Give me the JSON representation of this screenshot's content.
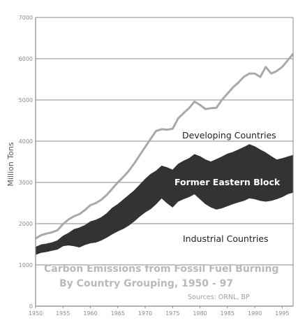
{
  "chart_data": {
    "type": "area",
    "title": "Carbon Emissions from Fossil Fuel Burning",
    "subtitle": "By Country Grouping, 1950 - 97",
    "source": "Sources: ORNL, BP",
    "ylabel": "Million Tons",
    "xlabel": "",
    "xlim": [
      1950,
      1997
    ],
    "ylim": [
      0,
      7000
    ],
    "x_ticks": [
      "1950",
      "1955",
      "1960",
      "1965",
      "1970",
      "1975",
      "1980",
      "1985",
      "1990",
      "1995"
    ],
    "y_ticks": [
      "0",
      "1000",
      "2000",
      "3000",
      "4000",
      "5000",
      "6000",
      "7000"
    ],
    "grid": "horizontal",
    "colors": {
      "frame": "#888888",
      "total_line": "#a9a9a9",
      "eastern_block": "#333333"
    },
    "x": [
      1950,
      1951,
      1952,
      1953,
      1954,
      1955,
      1956,
      1957,
      1958,
      1959,
      1960,
      1961,
      1962,
      1963,
      1964,
      1965,
      1966,
      1967,
      1968,
      1969,
      1970,
      1971,
      1972,
      1973,
      1974,
      1975,
      1976,
      1977,
      1978,
      1979,
      1980,
      1981,
      1982,
      1983,
      1984,
      1985,
      1986,
      1987,
      1988,
      1989,
      1990,
      1991,
      1992,
      1993,
      1994,
      1995,
      1996,
      1997
    ],
    "series": [
      {
        "name": "Industrial Countries",
        "values": [
          1250,
          1300,
          1320,
          1350,
          1380,
          1460,
          1480,
          1460,
          1430,
          1490,
          1530,
          1550,
          1600,
          1670,
          1750,
          1820,
          1880,
          1960,
          2060,
          2180,
          2280,
          2360,
          2480,
          2620,
          2500,
          2400,
          2540,
          2600,
          2650,
          2720,
          2600,
          2480,
          2400,
          2350,
          2380,
          2430,
          2480,
          2520,
          2560,
          2620,
          2600,
          2560,
          2540,
          2560,
          2600,
          2650,
          2720,
          2760
        ]
      },
      {
        "name": "Former Eastern Block",
        "values": [
          1430,
          1490,
          1510,
          1540,
          1590,
          1700,
          1770,
          1860,
          1900,
          1960,
          2050,
          2090,
          2150,
          2250,
          2380,
          2470,
          2580,
          2690,
          2800,
          2940,
          3080,
          3200,
          3280,
          3400,
          3360,
          3300,
          3440,
          3520,
          3580,
          3680,
          3630,
          3550,
          3500,
          3560,
          3620,
          3690,
          3730,
          3790,
          3850,
          3920,
          3870,
          3790,
          3720,
          3630,
          3550,
          3580,
          3620,
          3660
        ]
      },
      {
        "name": "Developing Countries",
        "values": [
          1640,
          1720,
          1760,
          1790,
          1840,
          1990,
          2100,
          2180,
          2230,
          2330,
          2450,
          2500,
          2580,
          2700,
          2850,
          3000,
          3130,
          3280,
          3460,
          3660,
          3860,
          4060,
          4250,
          4290,
          4280,
          4300,
          4550,
          4680,
          4800,
          4960,
          4880,
          4780,
          4800,
          4810,
          5000,
          5150,
          5300,
          5420,
          5560,
          5640,
          5640,
          5560,
          5800,
          5640,
          5700,
          5800,
          5960,
          6120
        ]
      }
    ]
  }
}
